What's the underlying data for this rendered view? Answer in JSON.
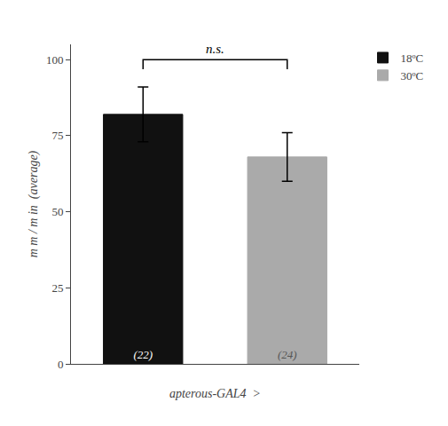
{
  "chart_data": {
    "type": "bar",
    "categories": [
      null,
      null
    ],
    "series": [
      {
        "name": "18ºC",
        "color": "#111111",
        "values": [
          82,
          null
        ],
        "errors": [
          9,
          null
        ],
        "n_labels": [
          "(22)",
          null
        ]
      },
      {
        "name": "30ºC",
        "color": "#aaaaaa",
        "values": [
          null,
          68
        ],
        "errors": [
          null,
          8
        ],
        "n_labels": [
          null,
          "(24)"
        ]
      }
    ],
    "xlabel": "apterous-GAL4  >",
    "ylabel": "m m / m in  (average)",
    "ylim": [
      0,
      105
    ],
    "yticks": [
      0,
      25,
      50,
      75,
      100
    ],
    "grid": false,
    "legend": "top right",
    "tick_labels": "y",
    "annotations": [
      {
        "text": "n.s.",
        "y": 100,
        "x1": 0,
        "x2": 1
      }
    ]
  }
}
